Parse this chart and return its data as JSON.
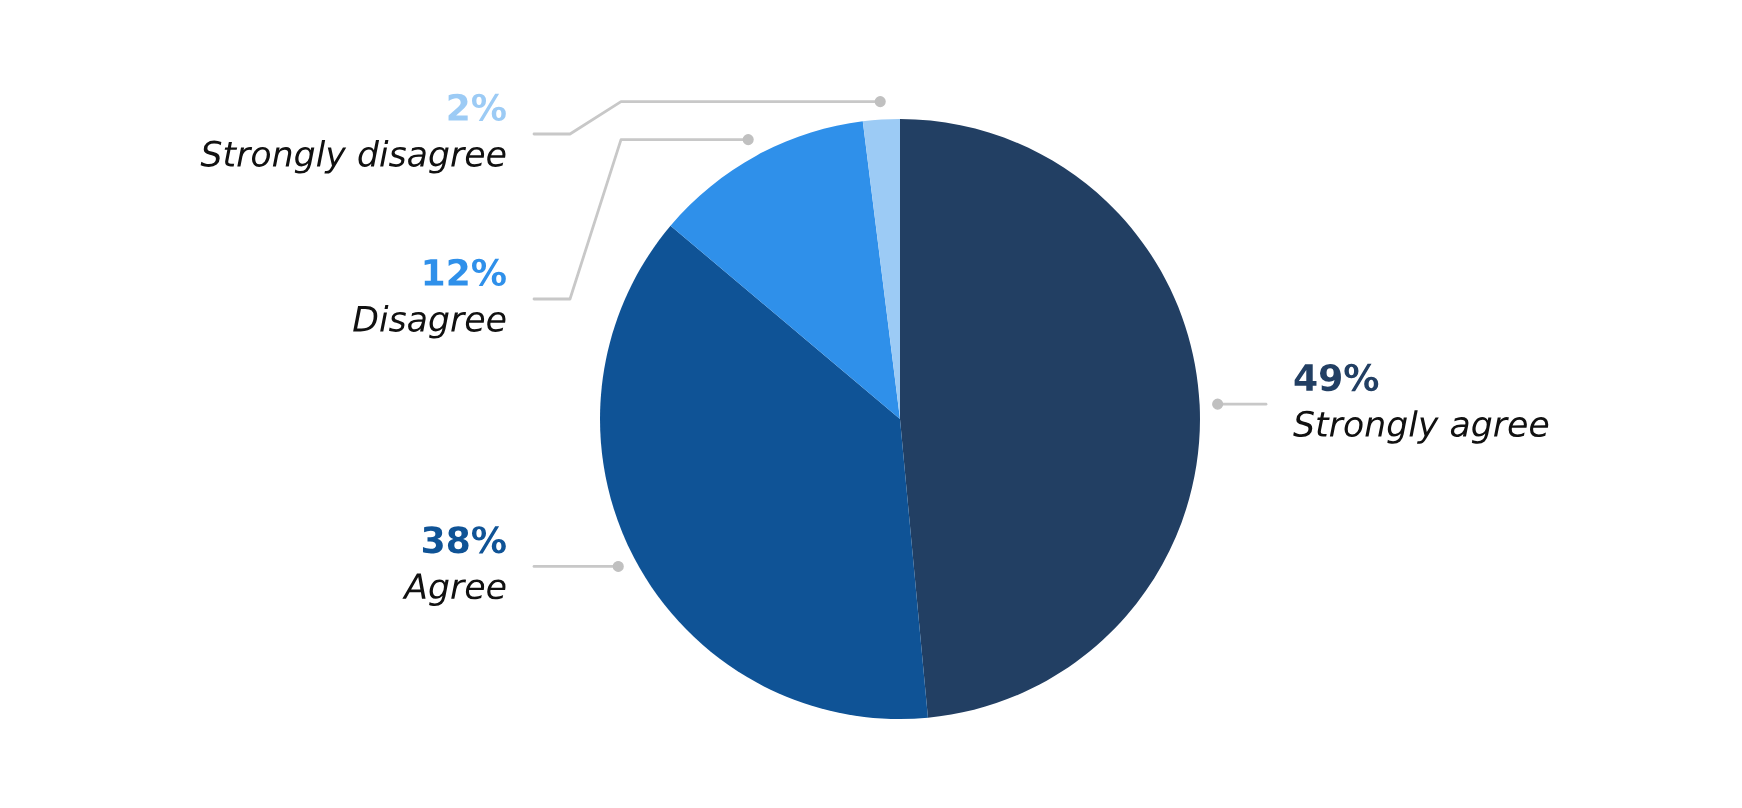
{
  "chart_data": {
    "type": "pie",
    "categories": [
      "Strongly agree",
      "Agree",
      "Disagree",
      "Strongly disagree"
    ],
    "values": [
      49,
      38,
      12,
      2
    ],
    "value_labels": [
      "49%",
      "38%",
      "12%",
      "2%"
    ],
    "colors": [
      "#223f63",
      "#0f5396",
      "#2f90ea",
      "#9ccbf5"
    ],
    "legend": false
  }
}
